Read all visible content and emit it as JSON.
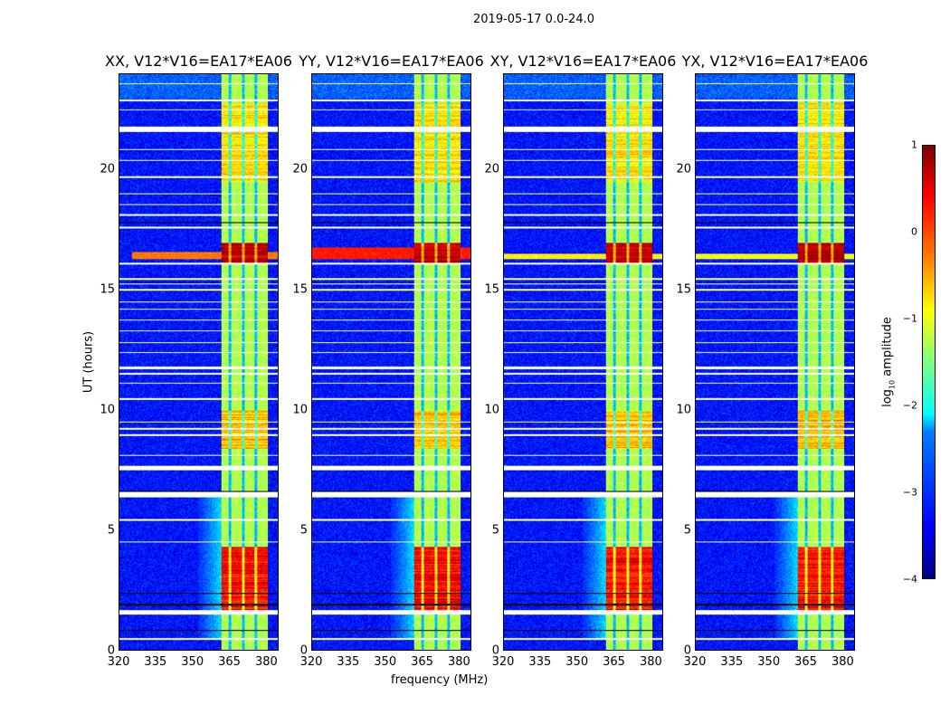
{
  "chart_data": {
    "type": "heatmap",
    "title": "2019-05-17 0.0-24.0",
    "xlabel": "frequency (MHz)",
    "ylabel": "UT (hours)",
    "xlim": [
      320,
      385
    ],
    "ylim": [
      0,
      24
    ],
    "xticks": [
      "320",
      "335",
      "350",
      "365",
      "380"
    ],
    "yticks": [
      "0",
      "5",
      "10",
      "15",
      "20"
    ],
    "xtick_values": [
      320,
      335,
      350,
      365,
      380
    ],
    "ytick_values": [
      0,
      5,
      10,
      15,
      20
    ],
    "colorbar": {
      "label_main": "log",
      "label_sub": "10",
      "label_rest": " amplitude",
      "range": [
        -4,
        1
      ],
      "ticks": [
        "1",
        "0",
        "−1",
        "−2",
        "−3",
        "−4"
      ],
      "tick_values": [
        1,
        0,
        -1,
        -2,
        -3,
        -4
      ],
      "colormap": "jet"
    },
    "model": {
      "background_level": -3.3,
      "band_mhz": [
        361.5,
        380.8
      ],
      "band_level": -1.25,
      "subband_edges_mhz": [
        365.3,
        370.6,
        375.8
      ],
      "band_intervals": [
        {
          "ut": [
            1.6,
            4.3
          ],
          "level": 0.35
        },
        {
          "ut": [
            8.4,
            10.0
          ],
          "level": -0.55
        },
        {
          "ut": [
            16.15,
            17.0
          ],
          "level": 0.75
        },
        {
          "ut": [
            19.5,
            22.8
          ],
          "level": -0.75
        }
      ],
      "shoulder": {
        "mhz": [
          352,
          361.5
        ],
        "ut": [
          0.5,
          6.5
        ],
        "level": -2.3
      },
      "flagged_ut": [
        [
          0.42,
          0.5
        ],
        [
          1.5,
          1.68
        ],
        [
          4.5,
          4.55
        ],
        [
          5.4,
          5.46
        ],
        [
          6.38,
          6.6
        ],
        [
          7.5,
          7.7
        ],
        [
          8.1,
          8.15
        ],
        [
          8.95,
          9.0
        ],
        [
          9.2,
          9.28
        ],
        [
          9.5,
          9.55
        ],
        [
          10.45,
          10.5
        ],
        [
          11.1,
          11.15
        ],
        [
          11.5,
          11.55
        ],
        [
          11.7,
          11.82
        ],
        [
          12.4,
          12.45
        ],
        [
          12.8,
          12.85
        ],
        [
          13.3,
          13.35
        ],
        [
          13.75,
          13.8
        ],
        [
          14.2,
          14.25
        ],
        [
          14.5,
          14.55
        ],
        [
          15.0,
          15.05
        ],
        [
          15.25,
          15.3
        ],
        [
          15.45,
          15.5
        ],
        [
          16.1,
          16.15
        ],
        [
          17.6,
          17.65
        ],
        [
          18.1,
          18.2
        ],
        [
          18.55,
          18.6
        ],
        [
          19.0,
          19.05
        ],
        [
          19.7,
          19.75
        ],
        [
          20.4,
          20.45
        ],
        [
          20.85,
          20.9
        ],
        [
          21.6,
          21.82
        ],
        [
          22.5,
          22.55
        ],
        [
          22.9,
          22.95
        ],
        [
          23.6,
          23.65
        ]
      ],
      "black_ut": [
        [
          0.8,
          0.85
        ],
        [
          1.88,
          1.93
        ],
        [
          2.35,
          2.4
        ],
        [
          6.6,
          6.65
        ],
        [
          7.5,
          7.55
        ],
        [
          11.75,
          11.8
        ],
        [
          16.1,
          16.17
        ],
        [
          17.8,
          17.85
        ],
        [
          18.1,
          18.14
        ],
        [
          22.9,
          22.93
        ]
      ]
    },
    "panels": [
      {
        "title": "XX, V12*V16=EA17*EA06",
        "broadband": {
          "ut": [
            16.3,
            16.6
          ],
          "level": -0.2,
          "start_mhz": 325
        }
      },
      {
        "title": "YY, V12*V16=EA17*EA06",
        "broadband": {
          "ut": [
            16.3,
            16.8
          ],
          "level": 0.25,
          "start_mhz": 320
        }
      },
      {
        "title": "XY, V12*V16=EA17*EA06",
        "broadband": {
          "ut": [
            16.3,
            16.55
          ],
          "level": -0.8,
          "start_mhz": 320
        }
      },
      {
        "title": "YX, V12*V16=EA17*EA06",
        "broadband": {
          "ut": [
            16.3,
            16.55
          ],
          "level": -0.9,
          "start_mhz": 320
        }
      }
    ]
  }
}
